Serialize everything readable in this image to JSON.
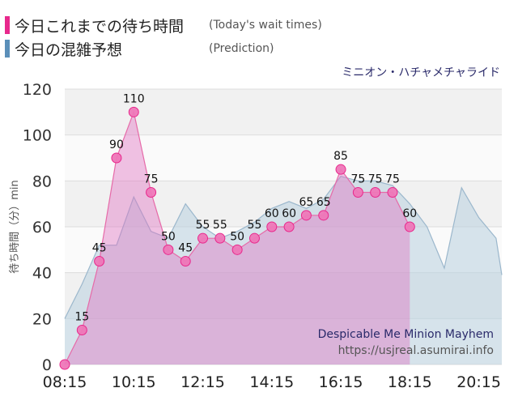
{
  "legend": {
    "today": {
      "label": "今日これまでの待ち時間",
      "sub": "(Today's wait times)",
      "color": "#e8288c"
    },
    "prediction": {
      "label": "今日の混雑予想",
      "sub": "(Prediction)",
      "color": "#5b8fb9"
    }
  },
  "chart_data": {
    "type": "area",
    "title": "ミニオン・ハチャメチャライド",
    "ylabel": "待ち時間（分）min",
    "ylim": [
      0,
      120
    ],
    "yticks": [
      0,
      20,
      40,
      60,
      80,
      100,
      120
    ],
    "xlim": [
      "08:15",
      "20:55"
    ],
    "xticks": [
      "08:15",
      "10:15",
      "12:15",
      "14:15",
      "16:15",
      "18:15",
      "20:15"
    ],
    "grid": true,
    "series": [
      {
        "name": "今日これまでの待ち時間",
        "color": "#e8288c",
        "x": [
          "08:15",
          "08:45",
          "09:15",
          "09:45",
          "10:15",
          "10:45",
          "11:15",
          "11:45",
          "12:15",
          "12:45",
          "13:15",
          "13:45",
          "14:15",
          "14:45",
          "15:15",
          "15:45",
          "16:15",
          "16:45",
          "17:15",
          "17:45",
          "18:15"
        ],
        "values": [
          0,
          15,
          45,
          90,
          110,
          75,
          50,
          45,
          55,
          55,
          50,
          55,
          60,
          60,
          65,
          65,
          85,
          75,
          75,
          75,
          60
        ]
      },
      {
        "name": "今日の混雑予想",
        "color": "#8aaec8",
        "x": [
          "08:15",
          "08:45",
          "09:15",
          "09:45",
          "10:15",
          "10:45",
          "11:15",
          "11:45",
          "12:15",
          "12:45",
          "13:15",
          "13:45",
          "14:15",
          "14:45",
          "15:15",
          "15:45",
          "16:15",
          "16:45",
          "17:15",
          "17:45",
          "18:15",
          "18:45",
          "19:15",
          "19:45",
          "20:15",
          "20:45",
          "20:55"
        ],
        "values": [
          20,
          35,
          52,
          52,
          73,
          58,
          55,
          70,
          60,
          55,
          58,
          62,
          68,
          71,
          68,
          72,
          82,
          80,
          80,
          78,
          70,
          60,
          42,
          77,
          64,
          55,
          39
        ]
      }
    ],
    "annotations": {
      "en_name": "Despicable Me Minion Mayhem",
      "source": "https://usjreal.asumirai.info"
    }
  }
}
